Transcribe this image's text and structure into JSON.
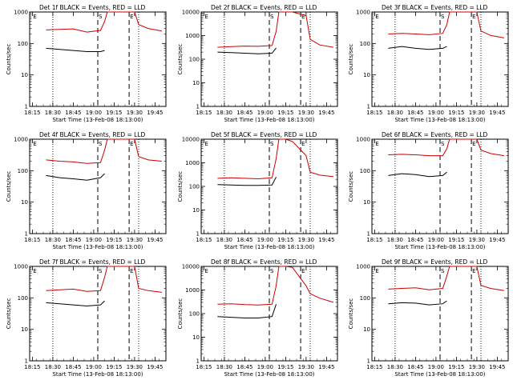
{
  "figure": {
    "x_axis_label": "Start Time (13-Feb-08 18:13:00)",
    "y_axis_label": "Counts/sec",
    "x_tick_labels": [
      "18:15",
      "18:30",
      "18:45",
      "19:00",
      "19:15",
      "19:30",
      "19:45"
    ],
    "y_tick_labels": [
      "1",
      "10",
      "100",
      "1000",
      "10000"
    ],
    "marker_labels": [
      "E",
      "S",
      "E"
    ],
    "colors": {
      "events": "#000000",
      "lld": "#cc0000",
      "axes": "#000000",
      "background": "#ffffff"
    }
  },
  "chart_data": [
    {
      "type": "line",
      "title": "Det 1f BLACK = Events, RED = LLD",
      "xlabel": "Start Time (13-Feb-08 18:13:00)",
      "ylabel": "Counts/sec",
      "yscale": "log",
      "ylim": [
        1,
        1000
      ],
      "xlim": [
        "18:13",
        "19:53"
      ],
      "x": [
        "18:25",
        "18:35",
        "18:45",
        "18:55",
        "19:05",
        "19:08",
        "19:10",
        "19:15",
        "19:20",
        "19:30",
        "19:33",
        "19:40",
        "19:50"
      ],
      "series": [
        {
          "name": "Events",
          "values": [
            70,
            65,
            60,
            55,
            55,
            60,
            null,
            null,
            null,
            null,
            null,
            null,
            null
          ]
        },
        {
          "name": "LLD",
          "values": [
            270,
            280,
            290,
            230,
            260,
            500,
            1000,
            1000,
            1000,
            1000,
            400,
            300,
            250
          ]
        }
      ]
    },
    {
      "type": "line",
      "title": "Det 2f BLACK = Events, RED = LLD",
      "xlabel": "Start Time (13-Feb-08 18:13:00)",
      "ylabel": "Counts/sec",
      "yscale": "log",
      "ylim": [
        1,
        10000
      ],
      "xlim": [
        "18:13",
        "19:53"
      ],
      "x": [
        "18:25",
        "18:35",
        "18:45",
        "18:55",
        "19:05",
        "19:08",
        "19:10",
        "19:15",
        "19:20",
        "19:30",
        "19:33",
        "19:40",
        "19:50"
      ],
      "series": [
        {
          "name": "Events",
          "values": [
            200,
            190,
            180,
            170,
            180,
            300,
            null,
            null,
            null,
            null,
            null,
            null,
            null
          ]
        },
        {
          "name": "LLD",
          "values": [
            320,
            340,
            360,
            350,
            380,
            1500,
            10000,
            10000,
            10000,
            7000,
            700,
            400,
            320
          ]
        }
      ]
    },
    {
      "type": "line",
      "title": "Det 3f BLACK = Events, RED = LLD",
      "xlabel": "Start Time (13-Feb-08 18:13:00)",
      "ylabel": "Counts/sec",
      "yscale": "log",
      "ylim": [
        1,
        1000
      ],
      "xlim": [
        "18:13",
        "19:53"
      ],
      "x": [
        "18:25",
        "18:35",
        "18:45",
        "18:55",
        "19:05",
        "19:08",
        "19:10",
        "19:15",
        "19:20",
        "19:30",
        "19:33",
        "19:40",
        "19:50"
      ],
      "series": [
        {
          "name": "Events",
          "values": [
            70,
            80,
            70,
            65,
            70,
            80,
            null,
            null,
            null,
            null,
            null,
            null,
            null
          ]
        },
        {
          "name": "LLD",
          "values": [
            200,
            210,
            200,
            190,
            210,
            400,
            1000,
            1000,
            1000,
            1000,
            250,
            180,
            150
          ]
        }
      ]
    },
    {
      "type": "line",
      "title": "Det 4f BLACK = Events, RED = LLD",
      "xlabel": "Start Time (13-Feb-08 18:13:00)",
      "ylabel": "Counts/sec",
      "yscale": "log",
      "ylim": [
        1,
        1000
      ],
      "xlim": [
        "18:13",
        "19:53"
      ],
      "x": [
        "18:25",
        "18:35",
        "18:45",
        "18:55",
        "19:05",
        "19:08",
        "19:10",
        "19:15",
        "19:20",
        "19:30",
        "19:33",
        "19:40",
        "19:50"
      ],
      "series": [
        {
          "name": "Events",
          "values": [
            70,
            60,
            55,
            50,
            60,
            80,
            null,
            null,
            null,
            null,
            null,
            null,
            null
          ]
        },
        {
          "name": "LLD",
          "values": [
            220,
            200,
            190,
            170,
            180,
            450,
            1000,
            1000,
            1000,
            1000,
            280,
            220,
            200
          ]
        }
      ]
    },
    {
      "type": "line",
      "title": "Det 5f BLACK = Events, RED = LLD",
      "xlabel": "Start Time (13-Feb-08 18:13:00)",
      "ylabel": "Counts/sec",
      "yscale": "log",
      "ylim": [
        1,
        10000
      ],
      "xlim": [
        "18:13",
        "19:53"
      ],
      "x": [
        "18:25",
        "18:35",
        "18:45",
        "18:55",
        "19:05",
        "19:08",
        "19:10",
        "19:15",
        "19:20",
        "19:30",
        "19:33",
        "19:40",
        "19:50"
      ],
      "series": [
        {
          "name": "Events",
          "values": [
            120,
            115,
            110,
            110,
            115,
            250,
            null,
            null,
            null,
            null,
            null,
            null,
            null
          ]
        },
        {
          "name": "LLD",
          "values": [
            220,
            230,
            220,
            210,
            230,
            1500,
            10000,
            10000,
            8000,
            2000,
            400,
            300,
            260
          ]
        }
      ]
    },
    {
      "type": "line",
      "title": "Det 6f BLACK = Events, RED = LLD",
      "xlabel": "Start Time (13-Feb-08 18:13:00)",
      "ylabel": "Counts/sec",
      "yscale": "log",
      "ylim": [
        1,
        1000
      ],
      "xlim": [
        "18:13",
        "19:53"
      ],
      "x": [
        "18:25",
        "18:35",
        "18:45",
        "18:55",
        "19:05",
        "19:08",
        "19:10",
        "19:15",
        "19:20",
        "19:30",
        "19:33",
        "19:40",
        "19:50"
      ],
      "series": [
        {
          "name": "Events",
          "values": [
            70,
            80,
            75,
            65,
            70,
            90,
            null,
            null,
            null,
            null,
            null,
            null,
            null
          ]
        },
        {
          "name": "LLD",
          "values": [
            320,
            330,
            320,
            300,
            300,
            500,
            1000,
            1000,
            1000,
            1000,
            450,
            350,
            300
          ]
        }
      ]
    },
    {
      "type": "line",
      "title": "Det 7f BLACK = Events, RED = LLD",
      "xlabel": "Start Time (13-Feb-08 18:13:00)",
      "ylabel": "Counts/sec",
      "yscale": "log",
      "ylim": [
        1,
        1000
      ],
      "xlim": [
        "18:13",
        "19:53"
      ],
      "x": [
        "18:25",
        "18:35",
        "18:45",
        "18:55",
        "19:05",
        "19:08",
        "19:10",
        "19:15",
        "19:20",
        "19:30",
        "19:33",
        "19:40",
        "19:50"
      ],
      "series": [
        {
          "name": "Events",
          "values": [
            70,
            65,
            60,
            55,
            60,
            80,
            null,
            null,
            null,
            null,
            null,
            null,
            null
          ]
        },
        {
          "name": "LLD",
          "values": [
            170,
            180,
            190,
            160,
            170,
            450,
            1000,
            1000,
            1000,
            1000,
            200,
            170,
            150
          ]
        }
      ]
    },
    {
      "type": "line",
      "title": "Det 8f BLACK = Events, RED = LLD",
      "xlabel": "Start Time (13-Feb-08 18:13:00)",
      "ylabel": "Counts/sec",
      "yscale": "log",
      "ylim": [
        1,
        10000
      ],
      "xlim": [
        "18:13",
        "19:53"
      ],
      "x": [
        "18:25",
        "18:35",
        "18:45",
        "18:55",
        "19:05",
        "19:08",
        "19:10",
        "19:15",
        "19:20",
        "19:30",
        "19:33",
        "19:40",
        "19:50"
      ],
      "series": [
        {
          "name": "Events",
          "values": [
            75,
            70,
            65,
            65,
            75,
            250,
            null,
            null,
            null,
            null,
            null,
            null,
            null
          ]
        },
        {
          "name": "LLD",
          "values": [
            250,
            260,
            240,
            230,
            250,
            1500,
            10000,
            10000,
            9000,
            1500,
            700,
            450,
            300
          ]
        }
      ]
    },
    {
      "type": "line",
      "title": "Det 9f BLACK = Events, RED = LLD",
      "xlabel": "Start Time (13-Feb-08 18:13:00)",
      "ylabel": "Counts/sec",
      "yscale": "log",
      "ylim": [
        1,
        1000
      ],
      "xlim": [
        "18:13",
        "19:53"
      ],
      "x": [
        "18:25",
        "18:35",
        "18:45",
        "18:55",
        "19:05",
        "19:08",
        "19:10",
        "19:15",
        "19:20",
        "19:30",
        "19:33",
        "19:40",
        "19:50"
      ],
      "series": [
        {
          "name": "Events",
          "values": [
            65,
            70,
            68,
            60,
            65,
            80,
            null,
            null,
            null,
            null,
            null,
            null,
            null
          ]
        },
        {
          "name": "LLD",
          "values": [
            190,
            200,
            210,
            180,
            200,
            500,
            1000,
            1000,
            1000,
            1000,
            250,
            200,
            170
          ]
        }
      ]
    }
  ]
}
